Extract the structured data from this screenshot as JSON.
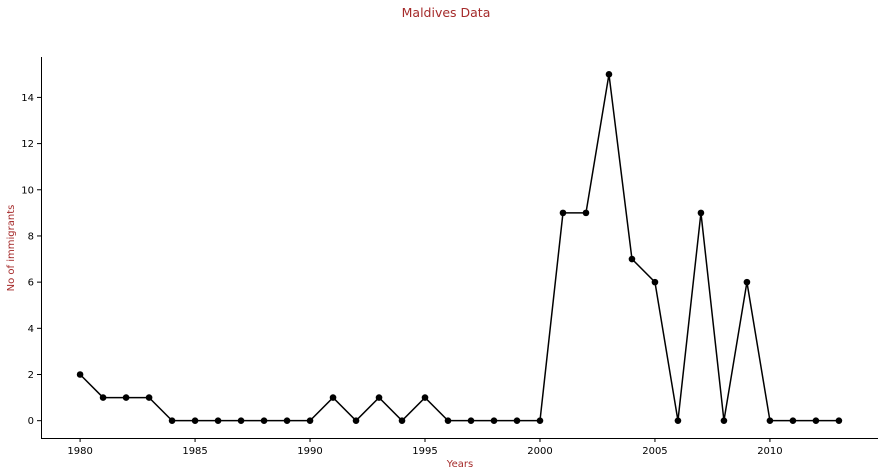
{
  "chart_data": {
    "type": "line",
    "title": "Maldives Data",
    "xlabel": "Years",
    "ylabel": "No of immigrants",
    "xlim": [
      1978.3,
      2014.7
    ],
    "ylim": [
      -0.75,
      15.75
    ],
    "xticks": [
      1980,
      1985,
      1990,
      1995,
      2000,
      2005,
      2010
    ],
    "yticks": [
      0,
      2,
      4,
      6,
      8,
      10,
      12,
      14
    ],
    "grid": false,
    "legend": "none",
    "colors": {
      "line": "#000000",
      "marker": "#000000",
      "text_accent": "#a52a2a"
    },
    "series": [
      {
        "x": [
          1980,
          1981,
          1982,
          1983,
          1984,
          1985,
          1986,
          1987,
          1988,
          1989,
          1990,
          1991,
          1992,
          1993,
          1994,
          1995,
          1996,
          1997,
          1998,
          1999,
          2000,
          2001,
          2002,
          2003,
          2004,
          2005,
          2006,
          2007,
          2008,
          2009,
          2010,
          2011,
          2012,
          2013
        ],
        "values": [
          2,
          1,
          1,
          1,
          0,
          0,
          0,
          0,
          0,
          0,
          0,
          1,
          0,
          1,
          0,
          1,
          0,
          0,
          0,
          0,
          0,
          9,
          9,
          15,
          7,
          6,
          0,
          9,
          0,
          6,
          0,
          0,
          0,
          0
        ]
      }
    ]
  }
}
